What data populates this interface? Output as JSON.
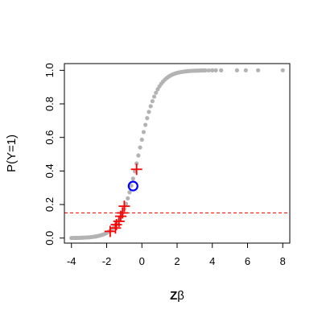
{
  "chart_data": {
    "type": "scatter",
    "xlabel_bold": "Z",
    "xlabel_greek": "β",
    "ylabel": "P(Y=1)",
    "xlim": [
      -4.4,
      8.4
    ],
    "ylim": [
      -0.03,
      1.04
    ],
    "x_ticks": [
      -4,
      -2,
      0,
      2,
      4,
      6,
      8
    ],
    "x_tick_labels": [
      "-4",
      "-2",
      "0",
      "2",
      "4",
      "6",
      "8"
    ],
    "y_ticks": [
      0,
      0.2,
      0.4,
      0.6,
      0.8,
      1.0
    ],
    "y_tick_labels": [
      "0.0",
      "0.2",
      "0.4",
      "0.6",
      "0.8",
      "1.0"
    ],
    "threshold": 0.15,
    "colors": {
      "curve_points": "#b3b3b3",
      "cases": "#ff0000",
      "highlight": "#0000ff",
      "threshold_line": "#ff0000"
    },
    "curve_x": [
      -4.0,
      -3.9,
      -3.8,
      -3.7,
      -3.6,
      -3.5,
      -3.4,
      -3.3,
      -3.2,
      -3.1,
      -3.0,
      -2.9,
      -2.8,
      -2.7,
      -2.6,
      -2.5,
      -2.4,
      -2.3,
      -2.2,
      -2.1,
      -2.0,
      -1.9,
      -1.8,
      -1.7,
      -1.6,
      -1.5,
      -1.4,
      -1.3,
      -1.2,
      -1.1,
      -1.0,
      -0.9,
      -0.8,
      -0.7,
      -0.6,
      -0.5,
      -0.4,
      -0.3,
      -0.2,
      -0.1,
      0.0,
      0.1,
      0.2,
      0.3,
      0.4,
      0.5,
      0.6,
      0.7,
      0.8,
      0.9,
      1.0,
      1.1,
      1.2,
      1.3,
      1.4,
      1.5,
      1.6,
      1.7,
      1.8,
      1.9,
      2.0,
      2.1,
      2.2,
      2.3,
      2.4,
      2.5,
      2.6,
      2.7,
      2.8,
      2.9,
      3.0,
      3.1,
      3.2,
      3.3,
      3.4,
      3.5,
      3.6,
      3.8,
      4.0,
      4.2,
      4.5,
      5.4,
      5.9,
      6.6,
      8.0
    ],
    "cases": [
      {
        "x": -1.8,
        "y": 0.04
      },
      {
        "x": -1.5,
        "y": 0.06
      },
      {
        "x": -1.45,
        "y": 0.08
      },
      {
        "x": -1.3,
        "y": 0.1
      },
      {
        "x": -1.2,
        "y": 0.13
      },
      {
        "x": -1.1,
        "y": 0.15
      },
      {
        "x": -1.0,
        "y": 0.19
      },
      {
        "x": -0.3,
        "y": 0.41
      }
    ],
    "highlight": {
      "x": -0.5,
      "y": 0.31
    }
  }
}
